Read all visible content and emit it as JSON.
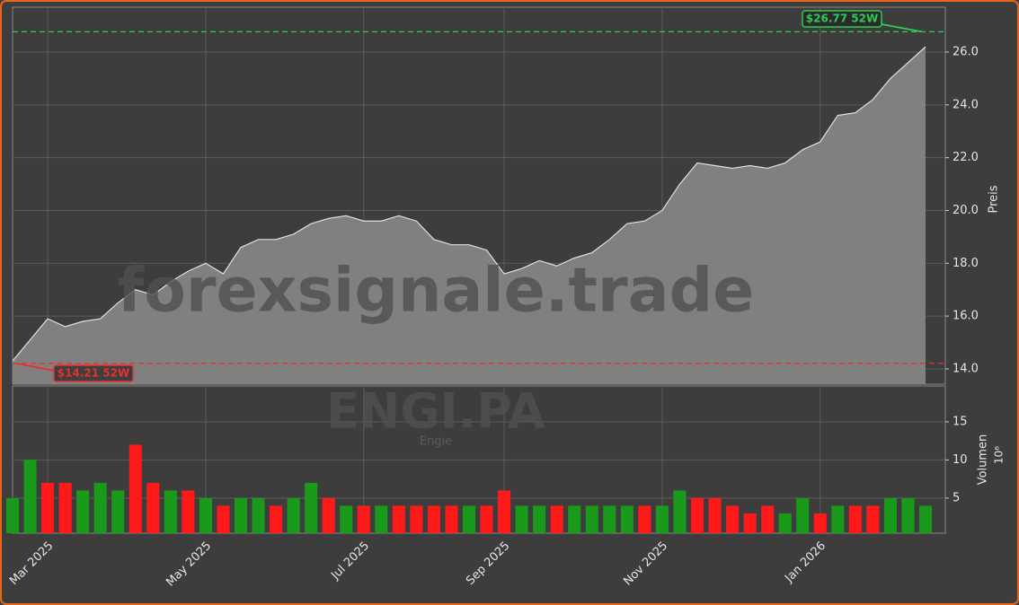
{
  "chart_data": {
    "type": "area",
    "watermark": "forexsignale.trade",
    "ticker": "ENGI.PA",
    "name": "Engie",
    "categories": [
      null,
      null,
      "Mar 2025",
      null,
      null,
      null,
      null,
      null,
      null,
      null,
      null,
      "May 2025",
      null,
      null,
      null,
      null,
      null,
      null,
      null,
      null,
      "Jul 2025",
      null,
      null,
      null,
      null,
      null,
      null,
      null,
      "Sep 2025",
      null,
      null,
      null,
      null,
      null,
      null,
      null,
      null,
      "Nov 2025",
      null,
      null,
      null,
      null,
      null,
      null,
      null,
      null,
      "Jan 2026",
      null,
      null,
      null,
      null,
      null,
      null
    ],
    "values": [
      14.3,
      15.1,
      15.9,
      15.6,
      15.8,
      15.9,
      16.5,
      17.0,
      16.8,
      17.3,
      17.7,
      18.0,
      17.6,
      18.6,
      18.9,
      18.9,
      19.1,
      19.5,
      19.7,
      19.8,
      19.6,
      19.6,
      19.8,
      19.6,
      18.9,
      18.7,
      18.7,
      18.5,
      17.6,
      17.8,
      18.1,
      17.9,
      18.2,
      18.4,
      18.9,
      19.5,
      19.6,
      20.0,
      21.0,
      21.8,
      21.7,
      21.6,
      21.7,
      21.6,
      21.8,
      22.3,
      22.6,
      23.6,
      23.7,
      24.2,
      25.0,
      25.6,
      26.2
    ],
    "color": "#808080",
    "ylim": [
      13.42,
      27.7
    ],
    "yticks": [
      {
        "value": 14,
        "label": "14.0"
      },
      {
        "value": 16,
        "label": "16.0"
      },
      {
        "value": 18,
        "label": "18.0"
      },
      {
        "value": 20,
        "label": "20.0"
      },
      {
        "value": 22,
        "label": "22.0"
      },
      {
        "value": 24,
        "label": "24.0"
      },
      {
        "value": 26,
        "label": "26.0"
      }
    ],
    "ylabel": "Preis",
    "grid": true,
    "high": {
      "value": 26.77,
      "label": "$26.77 52W",
      "color": "#2ecc52"
    },
    "low": {
      "value": 14.21,
      "label": "$14.21 52W",
      "color": "#e53030"
    },
    "volume": {
      "values": [
        5,
        10,
        7,
        7,
        6,
        7,
        6,
        12,
        7,
        6,
        6,
        5,
        4,
        5,
        5,
        4,
        5,
        7,
        5,
        4,
        4,
        4,
        4,
        4,
        4,
        4,
        4,
        4,
        6,
        4,
        4,
        4,
        4,
        4,
        4,
        4,
        4,
        4,
        6,
        5,
        5,
        4,
        3,
        4,
        3,
        5,
        3,
        4,
        4,
        4,
        5,
        5,
        4
      ],
      "colors": [
        "#1a9a1a",
        "#1a9a1a",
        "#ff1a1a",
        "#ff1a1a",
        "#1a9a1a",
        "#1a9a1a",
        "#1a9a1a",
        "#ff1a1a",
        "#ff1a1a",
        "#1a9a1a",
        "#ff1a1a",
        "#1a9a1a",
        "#ff1a1a",
        "#1a9a1a",
        "#1a9a1a",
        "#ff1a1a",
        "#1a9a1a",
        "#1a9a1a",
        "#ff1a1a",
        "#1a9a1a",
        "#ff1a1a",
        "#1a9a1a",
        "#ff1a1a",
        "#ff1a1a",
        "#ff1a1a",
        "#ff1a1a",
        "#1a9a1a",
        "#ff1a1a",
        "#ff1a1a",
        "#1a9a1a",
        "#1a9a1a",
        "#ff1a1a",
        "#1a9a1a",
        "#1a9a1a",
        "#1a9a1a",
        "#1a9a1a",
        "#ff1a1a",
        "#1a9a1a",
        "#1a9a1a",
        "#ff1a1a",
        "#ff1a1a",
        "#ff1a1a",
        "#ff1a1a",
        "#ff1a1a",
        "#1a9a1a",
        "#1a9a1a",
        "#ff1a1a",
        "#1a9a1a",
        "#ff1a1a",
        "#ff1a1a",
        "#1a9a1a",
        "#1a9a1a",
        "#1a9a1a"
      ],
      "ylim": [
        0.4,
        19.7
      ],
      "yticks": [
        5,
        10,
        15
      ],
      "ylabel": "Volumen",
      "scale_label": "10⁶"
    }
  }
}
